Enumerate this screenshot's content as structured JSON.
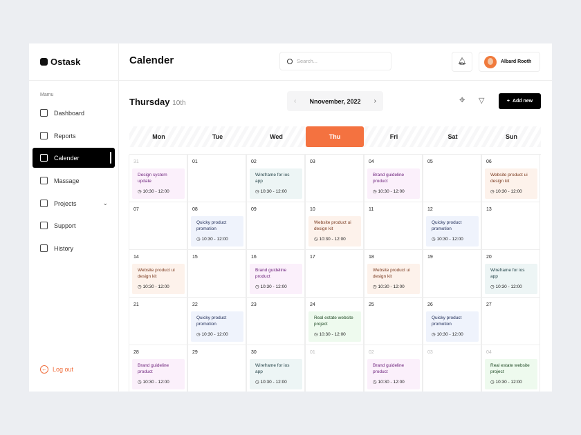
{
  "app": {
    "name": "Ostask"
  },
  "sidebar": {
    "menu_label": "Mamu",
    "items": [
      {
        "label": "Dashboard",
        "icon": "grid-icon"
      },
      {
        "label": "Reports",
        "icon": "bar-chart-icon"
      },
      {
        "label": "Calender",
        "icon": "calendar-icon",
        "active": true
      },
      {
        "label": "Massage",
        "icon": "message-icon"
      },
      {
        "label": "Projects",
        "icon": "layers-icon",
        "chevron": true
      },
      {
        "label": "Support",
        "icon": "headphones-icon"
      },
      {
        "label": "History",
        "icon": "document-icon"
      }
    ],
    "logout": "Log out"
  },
  "header": {
    "title": "Calender",
    "search_placeholder": "Search...",
    "user_name": "Albard Rooth"
  },
  "toolbar": {
    "day": "Thursday",
    "date": "10th",
    "month": "Nnovember, 2022",
    "add_new": "Add new"
  },
  "colors": {
    "accent": "#f47240",
    "purple": "#fbf0fb",
    "teal": "#edf5f5",
    "orange": "#fdf2eb",
    "blue": "#eff3fc",
    "green": "#eefaee"
  },
  "weekdays": [
    "Mon",
    "Tue",
    "Wed",
    "Thu",
    "Fri",
    "Sat",
    "Sun"
  ],
  "today_index": 3,
  "days": [
    {
      "n": "31",
      "muted": true,
      "ev": {
        "title": "Design system update",
        "time": "10:30 - 12:00",
        "c": "purple"
      }
    },
    {
      "n": "01"
    },
    {
      "n": "02",
      "ev": {
        "title": "Wireframe for ios app",
        "time": "10:30 - 12:00",
        "c": "teal"
      }
    },
    {
      "n": "03"
    },
    {
      "n": "04",
      "ev": {
        "title": "Brand guideline product",
        "time": "10:30 - 12:00",
        "c": "purple"
      }
    },
    {
      "n": "05"
    },
    {
      "n": "06",
      "ev": {
        "title": "Website product ui design kit",
        "time": "10:30 - 12:00",
        "c": "orange"
      }
    },
    {
      "n": "07"
    },
    {
      "n": "08",
      "ev": {
        "title": "Quicky product promotion",
        "time": "10:30 - 12:00",
        "c": "blue"
      }
    },
    {
      "n": "09"
    },
    {
      "n": "10",
      "ev": {
        "title": "Website product ui design kit",
        "time": "10:30 - 12:00",
        "c": "orange"
      }
    },
    {
      "n": "11"
    },
    {
      "n": "12",
      "ev": {
        "title": "Quicky product promotion",
        "time": "10:30 - 12:00",
        "c": "blue"
      }
    },
    {
      "n": "13"
    },
    {
      "n": "14",
      "ev": {
        "title": "Website product ui design kit",
        "time": "10:30 - 12:00",
        "c": "orange"
      }
    },
    {
      "n": "15"
    },
    {
      "n": "16",
      "ev": {
        "title": "Brand guideline product",
        "time": "10:30 - 12:00",
        "c": "purple"
      }
    },
    {
      "n": "17"
    },
    {
      "n": "18",
      "ev": {
        "title": "Website product ui design kit",
        "time": "10:30 - 12:00",
        "c": "orange"
      }
    },
    {
      "n": "19"
    },
    {
      "n": "20",
      "ev": {
        "title": "Wireframe for ios app",
        "time": "10:30 - 12:00",
        "c": "teal"
      }
    },
    {
      "n": "21"
    },
    {
      "n": "22",
      "ev": {
        "title": "Quicky product promotion",
        "time": "10:30 - 12:00",
        "c": "blue"
      }
    },
    {
      "n": "23"
    },
    {
      "n": "24",
      "ev": {
        "title": "Real estate website project",
        "time": "10:30 - 12:00",
        "c": "green"
      }
    },
    {
      "n": "25"
    },
    {
      "n": "26",
      "ev": {
        "title": "Quicky product promotion",
        "time": "10:30 - 12:00",
        "c": "blue"
      }
    },
    {
      "n": "27"
    },
    {
      "n": "28",
      "ev": {
        "title": "Brand guideline product",
        "time": "10:30 - 12:00",
        "c": "purple"
      }
    },
    {
      "n": "29"
    },
    {
      "n": "30",
      "ev": {
        "title": "Wireframe for ios app",
        "time": "10:30 - 12:00",
        "c": "teal"
      }
    },
    {
      "n": "01",
      "muted": true
    },
    {
      "n": "02",
      "muted": true,
      "ev": {
        "title": "Brand guideline product",
        "time": "10:30 - 12:00",
        "c": "purple"
      }
    },
    {
      "n": "03",
      "muted": true
    },
    {
      "n": "04",
      "muted": true,
      "ev": {
        "title": "Real estate website project",
        "time": "10:30 - 12:00",
        "c": "green"
      }
    }
  ]
}
